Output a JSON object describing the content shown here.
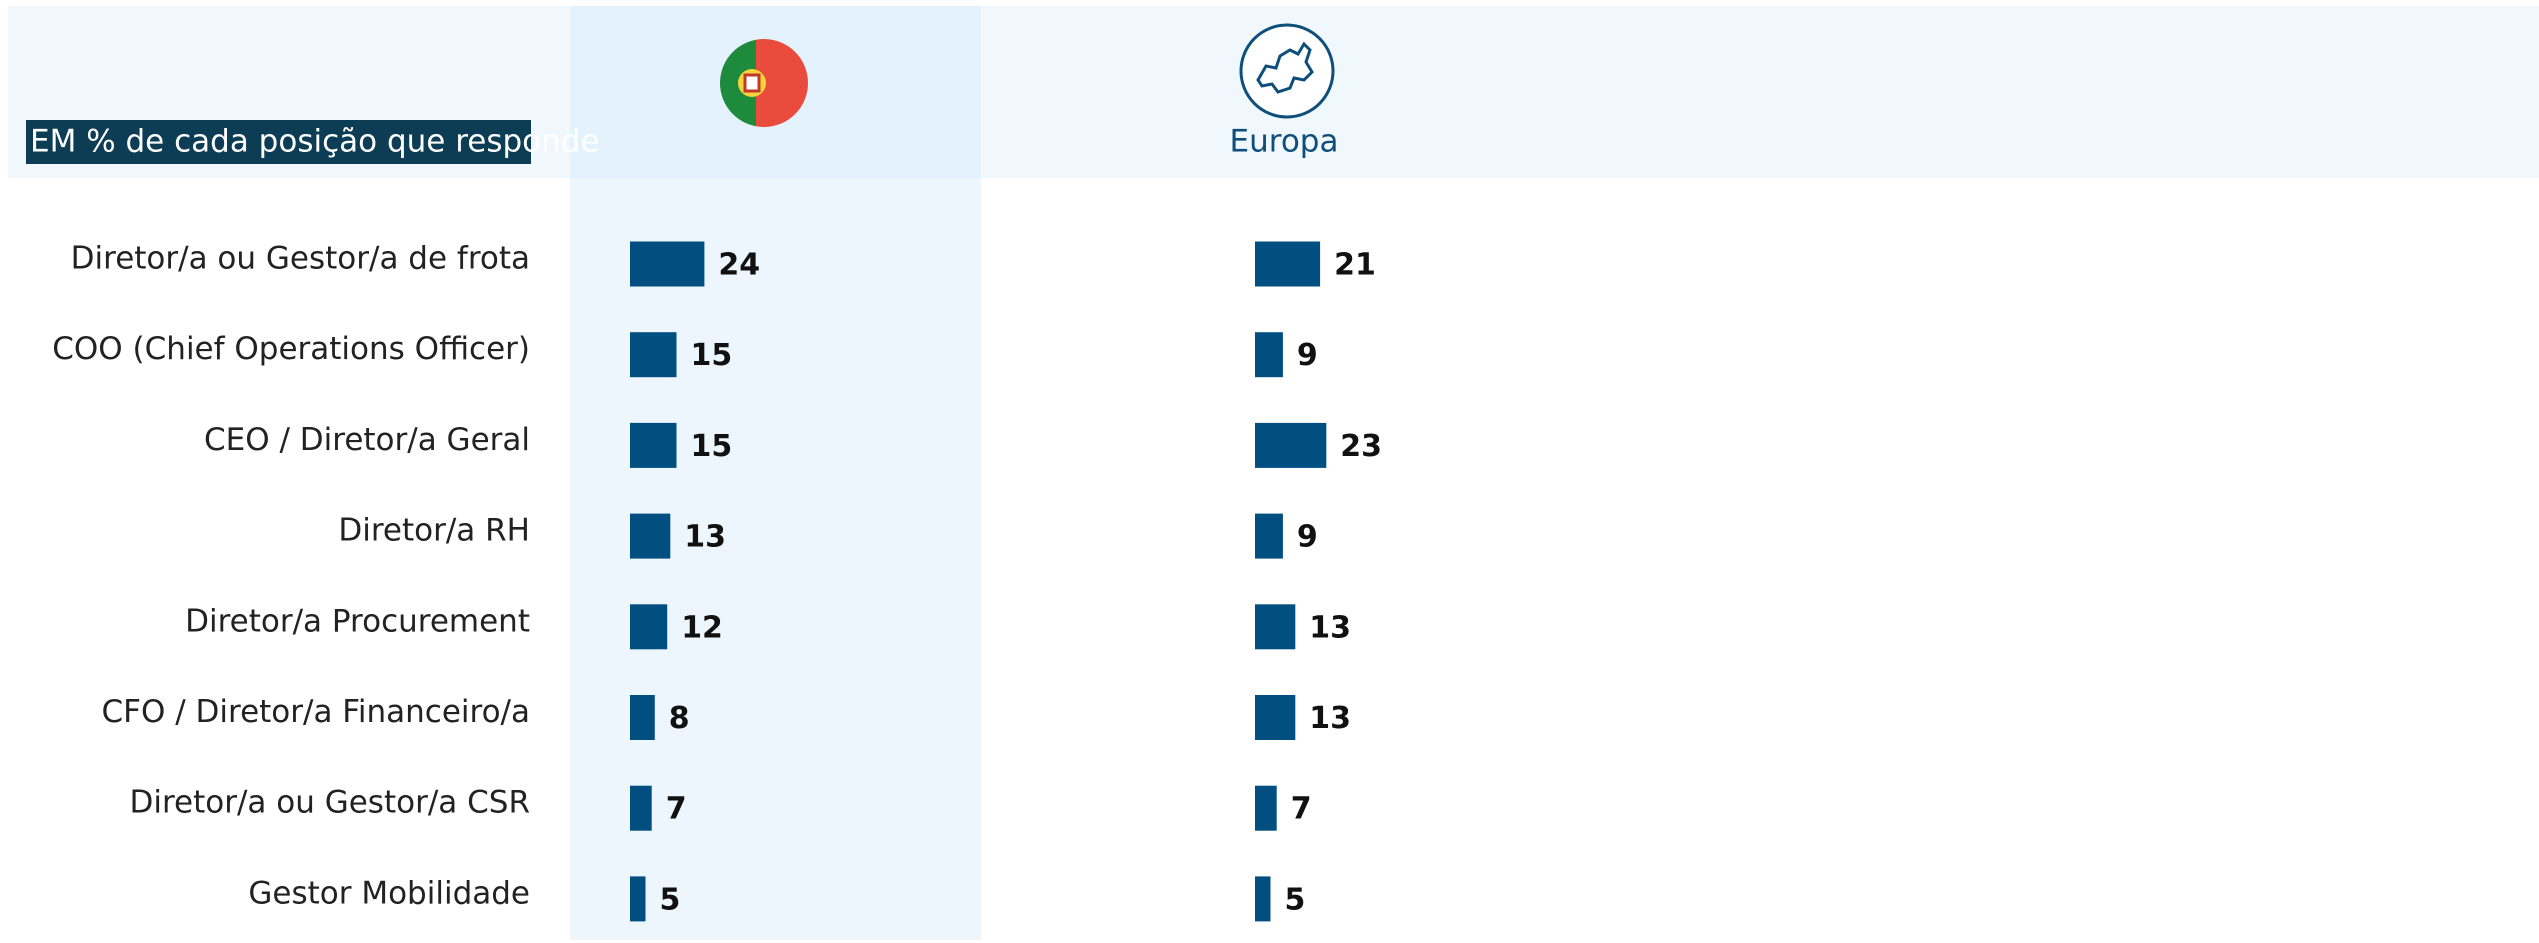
{
  "chart_data": {
    "type": "bar",
    "subtitle": "EM % de cada posição que responde",
    "categories": [
      "Diretor/a ou Gestor/a de frota",
      "COO (Chief Operations Officer)",
      "CEO / Diretor/a Geral",
      "Diretor/a RH",
      "Diretor/a Procurement",
      "CFO / Diretor/a Financeiro/a",
      "Diretor/a ou Gestor/a CSR",
      "Gestor Mobilidade"
    ],
    "series": [
      {
        "color": "#004f80",
        "values": [
          24,
          15,
          15,
          13,
          12,
          8,
          7,
          5
        ]
      },
      {
        "name": "Europa",
        "color": "#004f80",
        "values": [
          21,
          9,
          23,
          9,
          13,
          13,
          7,
          5
        ]
      }
    ]
  }
}
